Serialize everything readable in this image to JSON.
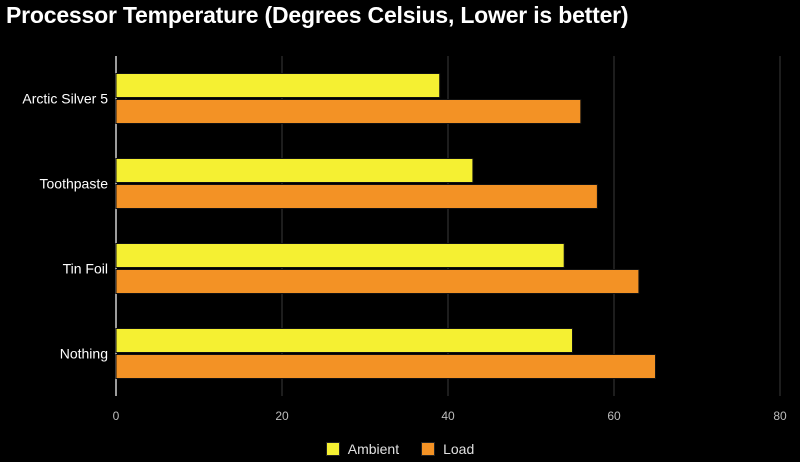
{
  "chart_data": {
    "type": "bar",
    "orientation": "horizontal",
    "title": "Processor Temperature (Degrees Celsius, Lower is better)",
    "xlabel": "",
    "ylabel": "",
    "categories": [
      "Arctic Silver 5",
      "Toothpaste",
      "Tin Foil",
      "Nothing"
    ],
    "series": [
      {
        "name": "Ambient",
        "color": "#f5f032",
        "values": [
          39,
          43,
          54,
          55
        ]
      },
      {
        "name": "Load",
        "color": "#f39225",
        "values": [
          56,
          58,
          63,
          65
        ]
      }
    ],
    "xlim": [
      0,
      80
    ],
    "xticks": [
      0,
      20,
      40,
      60,
      80
    ],
    "grid": true,
    "legend_position": "bottom"
  }
}
